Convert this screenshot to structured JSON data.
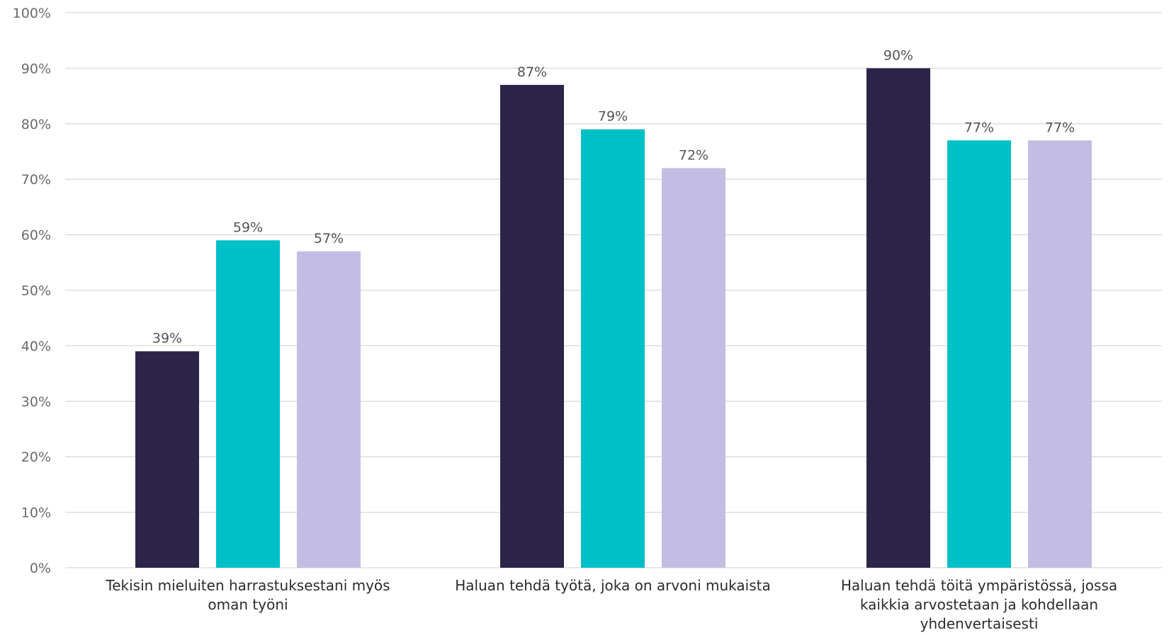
{
  "chart_data": {
    "type": "bar",
    "categories": [
      [
        "Tekisin mieluiten harrastuksestani myös",
        "oman työni"
      ],
      [
        "Haluan tehdä työtä, joka on arvoni mukaista"
      ],
      [
        "Haluan tehdä töitä ympäristössä, jossa",
        "kaikkia arvostetaan ja kohdellaan",
        "yhdenvertaisesti"
      ]
    ],
    "series": [
      {
        "color": "#2c2449",
        "values": [
          39,
          87,
          90
        ]
      },
      {
        "color": "#00c0c7",
        "values": [
          59,
          79,
          77
        ]
      },
      {
        "color": "#c3bde3",
        "values": [
          57,
          72,
          77
        ]
      }
    ],
    "data_labels": [
      [
        "39%",
        "87%",
        "90%"
      ],
      [
        "59%",
        "79%",
        "77%"
      ],
      [
        "57%",
        "72%",
        "77%"
      ]
    ],
    "ylim": [
      0,
      100
    ],
    "yticks": [
      0,
      10,
      20,
      30,
      40,
      50,
      60,
      70,
      80,
      90,
      100
    ],
    "ytick_labels": [
      "0%",
      "10%",
      "20%",
      "30%",
      "40%",
      "50%",
      "60%",
      "70%",
      "80%",
      "90%",
      "100%"
    ],
    "grid": true,
    "legend": "none",
    "title": "",
    "xlabel": "",
    "ylabel": ""
  }
}
